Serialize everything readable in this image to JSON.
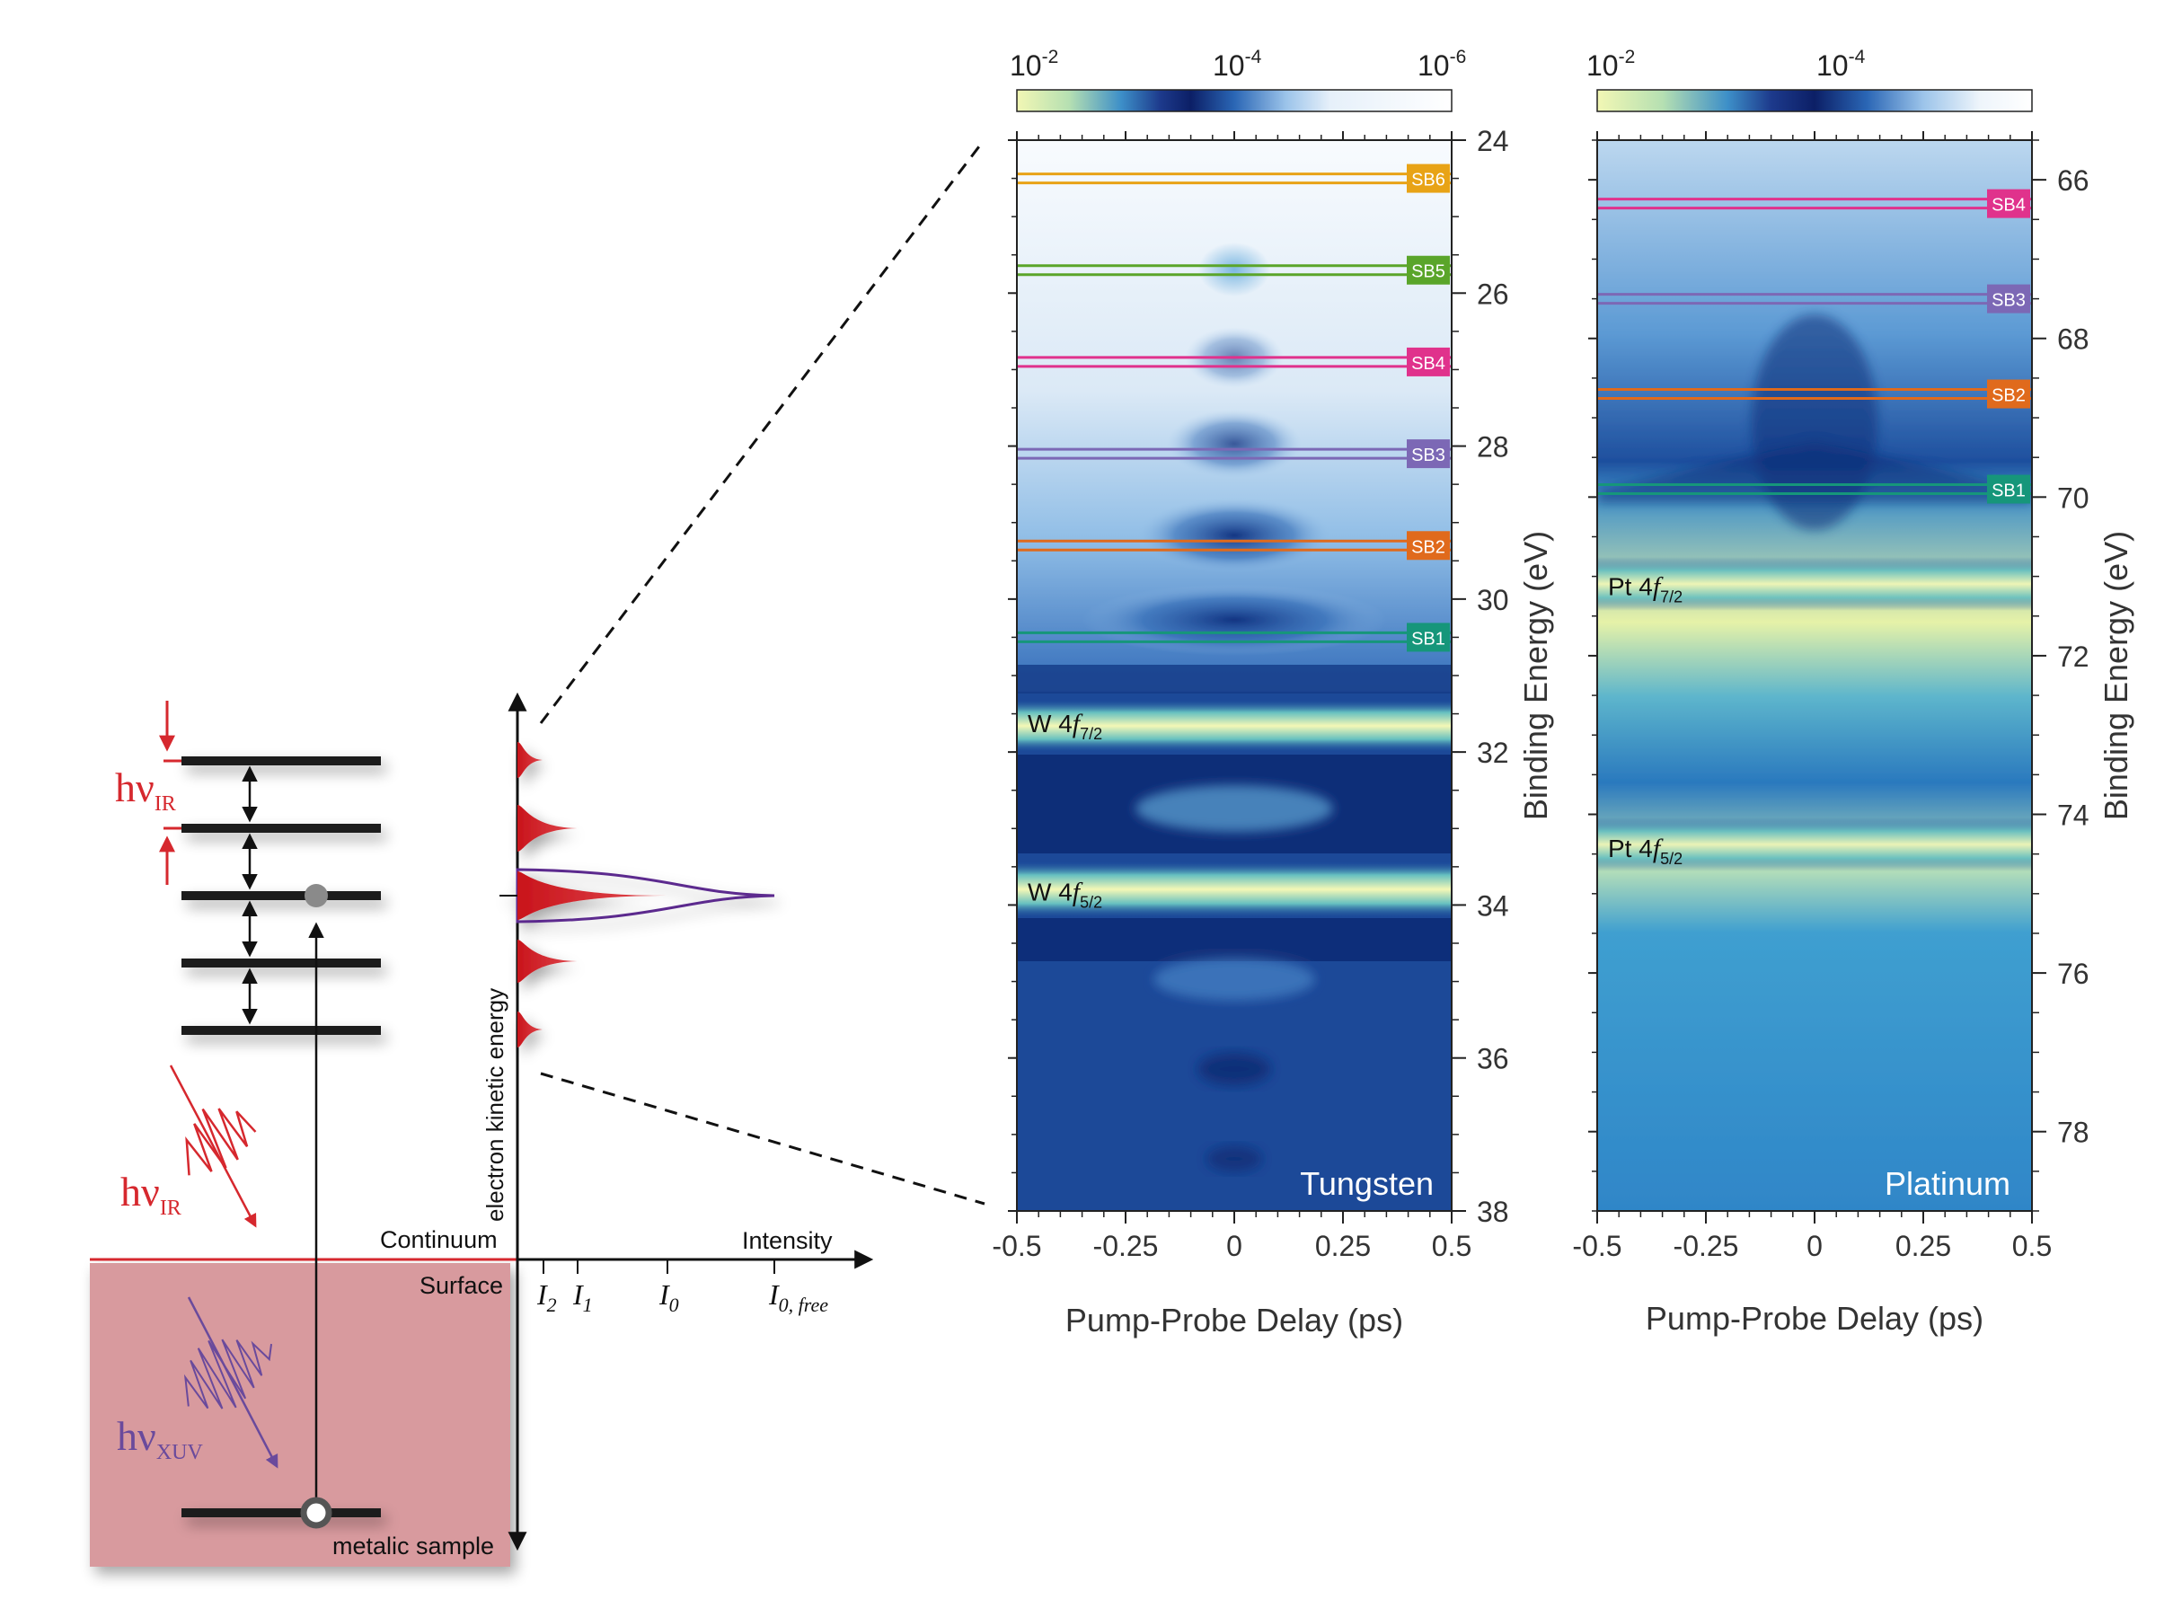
{
  "schematic": {
    "hv_ir_top": {
      "main": "hν",
      "sub": "IR"
    },
    "hv_ir_pulse": {
      "main": "hν",
      "sub": "IR"
    },
    "hv_xuv": {
      "main": "hν",
      "sub": "XUV"
    },
    "continuum_label": "Continuum",
    "surface_label": "Surface",
    "sample_label": "metalic sample",
    "y_axis_label": "electron kinetic energy",
    "x_axis_label": "Intensity",
    "intensity_ticks": [
      {
        "main": "I",
        "sub": "2"
      },
      {
        "main": "I",
        "sub": "1"
      },
      {
        "main": "I",
        "sub": "0"
      },
      {
        "main": "I",
        "sub": "0, free"
      }
    ],
    "colors": {
      "ir": "#d6282e",
      "xuv": "#6a4a9c",
      "sample": "#d89a9e"
    }
  },
  "colorbar": {
    "tungsten_ticks": [
      {
        "base": "10",
        "exp": "-2"
      },
      {
        "base": "10",
        "exp": "-4"
      },
      {
        "base": "10",
        "exp": "-6"
      }
    ],
    "platinum_ticks": [
      {
        "base": "10",
        "exp": "-2"
      },
      {
        "base": "10",
        "exp": "-4"
      }
    ]
  },
  "chart_data": [
    {
      "type": "heatmap",
      "title": "Tungsten",
      "xlabel": "Pump-Probe Delay (ps)",
      "ylabel": "Binding Energy (eV)",
      "xlim": [
        -0.5,
        0.5
      ],
      "ylim": [
        24,
        38
      ],
      "x_ticks": [
        "-0.5",
        "-0.25",
        "0",
        "0.25",
        "0.5"
      ],
      "y_ticks": [
        "24",
        "26",
        "28",
        "30",
        "32",
        "34",
        "36",
        "38"
      ],
      "sidebands": [
        {
          "name": "SB6",
          "energy": 24.5,
          "color": "#e8a317"
        },
        {
          "name": "SB5",
          "energy": 25.7,
          "color": "#5aa52a"
        },
        {
          "name": "SB4",
          "energy": 26.9,
          "color": "#e0338c"
        },
        {
          "name": "SB3",
          "energy": 28.1,
          "color": "#7b68b5"
        },
        {
          "name": "SB2",
          "energy": 29.3,
          "color": "#e06a1a"
        },
        {
          "name": "SB1",
          "energy": 30.5,
          "color": "#14967a"
        }
      ],
      "peaks": [
        {
          "main": "W 4",
          "ital": "f",
          "sub": "7/2",
          "energy": 31.6
        },
        {
          "main": "W 4",
          "ital": "f",
          "sub": "5/2",
          "energy": 33.8
        }
      ]
    },
    {
      "type": "heatmap",
      "title": "Platinum",
      "xlabel": "Pump-Probe Delay (ps)",
      "ylabel": "Binding Energy (eV)",
      "xlim": [
        -0.5,
        0.5
      ],
      "ylim": [
        65.5,
        79
      ],
      "x_ticks": [
        "-0.5",
        "-0.25",
        "0",
        "0.25",
        "0.5"
      ],
      "y_ticks": [
        "66",
        "68",
        "70",
        "72",
        "74",
        "76",
        "78"
      ],
      "sidebands": [
        {
          "name": "SB4",
          "energy": 66.3,
          "color": "#e0338c"
        },
        {
          "name": "SB3",
          "energy": 67.5,
          "color": "#7b68b5"
        },
        {
          "name": "SB2",
          "energy": 68.7,
          "color": "#e06a1a"
        },
        {
          "name": "SB1",
          "energy": 69.9,
          "color": "#14967a"
        }
      ],
      "peaks": [
        {
          "main": "Pt 4",
          "ital": "f",
          "sub": "7/2",
          "energy": 71.1
        },
        {
          "main": "Pt 4",
          "ital": "f",
          "sub": "5/2",
          "energy": 74.4
        }
      ]
    }
  ]
}
